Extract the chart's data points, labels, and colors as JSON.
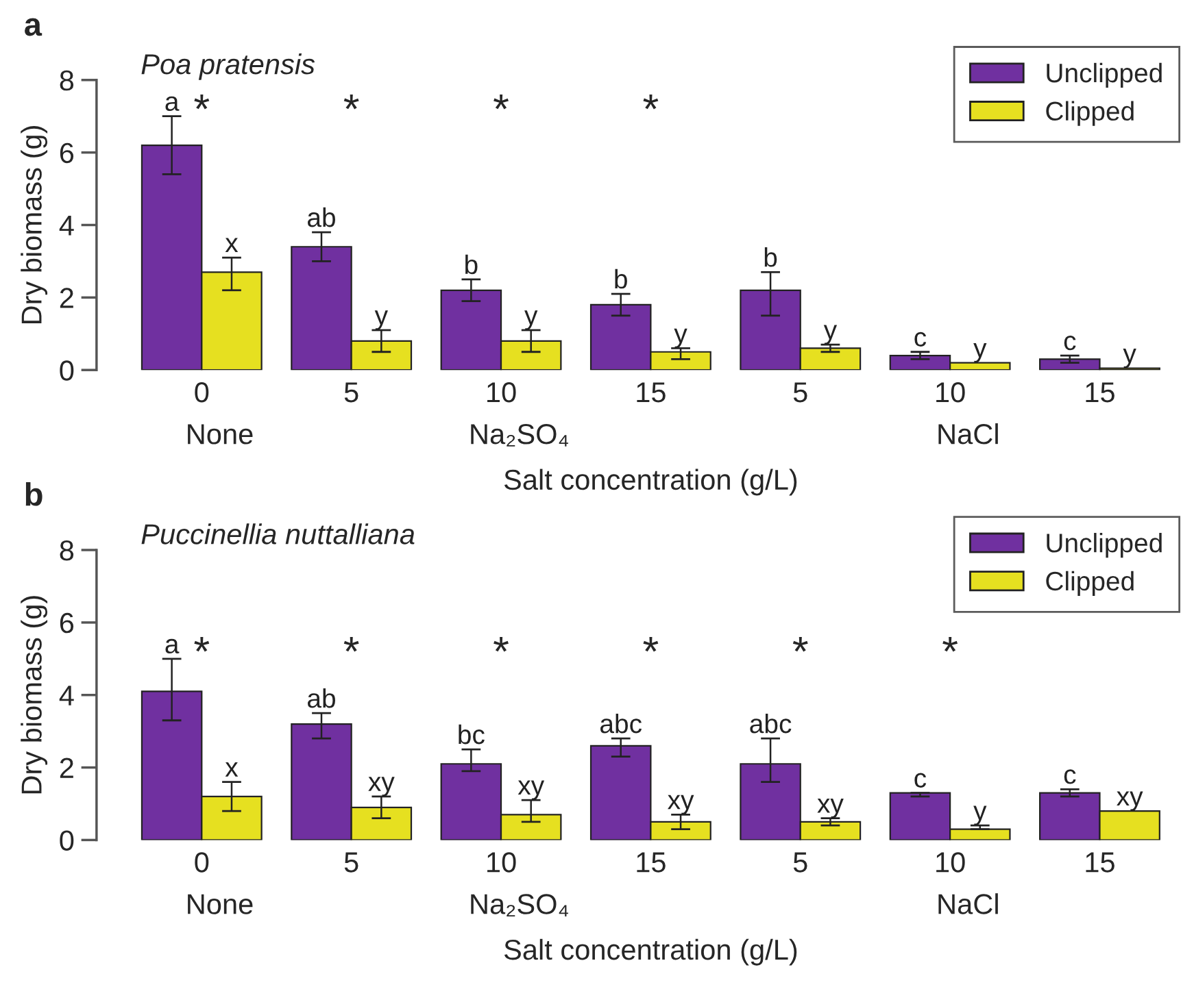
{
  "chart_data": [
    {
      "type": "bar",
      "title": "Poa pratensis",
      "xlabel": "Salt concentration (g/L)",
      "ylabel": "Dry biomass (g)",
      "categories": [
        "0",
        "5",
        "10",
        "15",
        "5",
        "10",
        "15"
      ],
      "series": [
        {
          "name": "Unclipped",
          "color": "#7030a0",
          "values": [
            6.2,
            3.4,
            2.2,
            1.8,
            2.2,
            0.4,
            0.3
          ],
          "errors": [
            [
              5.4,
              7.0
            ],
            [
              3.0,
              3.8
            ],
            [
              1.9,
              2.5
            ],
            [
              1.5,
              2.1
            ],
            [
              1.5,
              2.7
            ],
            [
              0.3,
              0.5
            ],
            [
              0.2,
              0.4
            ]
          ],
          "value_labels": [
            "a",
            "ab",
            "b",
            "b",
            "b",
            "c",
            "c"
          ]
        },
        {
          "name": "Clipped",
          "color": "#e6e020",
          "values": [
            2.7,
            0.8,
            0.8,
            0.5,
            0.6,
            0.2,
            0.05
          ],
          "errors": [
            [
              2.2,
              3.1
            ],
            [
              0.5,
              1.1
            ],
            [
              0.5,
              1.1
            ],
            [
              0.3,
              0.6
            ],
            [
              0.5,
              0.7
            ],
            null,
            null
          ],
          "value_labels": [
            "x",
            "y",
            "y",
            "y",
            "y",
            "y",
            "y"
          ]
        }
      ],
      "ylim": [
        0,
        8
      ],
      "yticks": [
        0,
        2,
        4,
        6,
        8
      ],
      "grid": false,
      "legend": "top right",
      "annotations": [
        "a",
        "None",
        "Na₂SO₄",
        "NaCl",
        "*",
        "*",
        "*",
        "*"
      ]
    },
    {
      "type": "bar",
      "title": "Puccinellia nuttalliana",
      "xlabel": "Salt concentration (g/L)",
      "ylabel": "Dry biomass (g)",
      "categories": [
        "0",
        "5",
        "10",
        "15",
        "5",
        "10",
        "15"
      ],
      "series": [
        {
          "name": "Unclipped",
          "color": "#7030a0",
          "values": [
            4.1,
            3.2,
            2.1,
            2.6,
            2.1,
            1.3,
            1.3
          ],
          "errors": [
            [
              3.3,
              5.0
            ],
            [
              2.8,
              3.5
            ],
            [
              1.9,
              2.5
            ],
            [
              2.3,
              2.8
            ],
            [
              1.6,
              2.8
            ],
            [
              1.2,
              1.3
            ],
            [
              1.2,
              1.4
            ]
          ],
          "value_labels": [
            "a",
            "ab",
            "bc",
            "abc",
            "abc",
            "c",
            "c"
          ]
        },
        {
          "name": "Clipped",
          "color": "#e6e020",
          "values": [
            1.2,
            0.9,
            0.7,
            0.5,
            0.5,
            0.3,
            0.8
          ],
          "errors": [
            [
              0.8,
              1.6
            ],
            [
              0.6,
              1.2
            ],
            [
              0.5,
              1.1
            ],
            [
              0.3,
              0.7
            ],
            [
              0.4,
              0.6
            ],
            [
              0.3,
              0.4
            ],
            null
          ],
          "value_labels": [
            "x",
            "xy",
            "xy",
            "xy",
            "xy",
            "y",
            "xy"
          ]
        }
      ],
      "ylim": [
        0,
        8
      ],
      "yticks": [
        0,
        2,
        4,
        6,
        8
      ],
      "grid": false,
      "legend": "top right",
      "annotations": [
        "b",
        "None",
        "Na₂SO₄",
        "NaCl",
        "*",
        "*",
        "*",
        "*",
        "*",
        "*"
      ]
    }
  ]
}
